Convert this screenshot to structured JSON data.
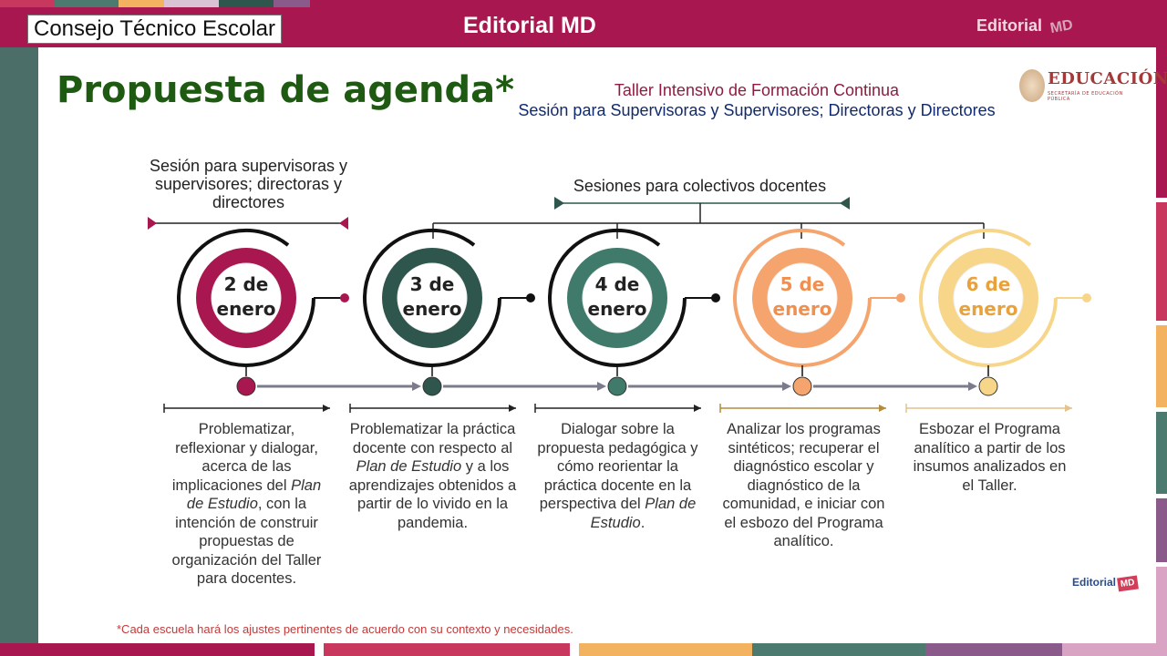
{
  "header": {
    "badge": "Consejo Técnico Escolar",
    "brand": "Editorial MD",
    "brand_right_word": "Editorial",
    "brand_right_mark": "MD"
  },
  "title": "Propuesta de agenda*",
  "subtitle": {
    "line1": "Taller Intensivo de Formación Continua",
    "line2": "Sesión para Supervisoras y Supervisores; Directoras y Directores"
  },
  "logo": {
    "text": "EDUCACIÓN",
    "subtext": "SECRETARÍA DE EDUCACIÓN PÚBLICA"
  },
  "labels": {
    "left": "Sesión para supervisoras y supervisores; directoras y directores",
    "right": "Sesiones para colectivos docentes"
  },
  "sessions": [
    {
      "date": "2 de enero",
      "color": "#a8174f",
      "desc_parts": [
        "Problematizar, reflexionar y dialogar, acerca de las implicaciones del ",
        "Plan de Estudio",
        ", con la intención de construir propuestas de organización del Taller para docentes."
      ]
    },
    {
      "date": "3 de enero",
      "color": "#2e564c",
      "desc_parts": [
        "Problematizar la práctica docente con respecto al ",
        "Plan de Estudio",
        " y a los aprendizajes obtenidos a partir de lo vivido en la pandemia."
      ]
    },
    {
      "date": "4 de enero",
      "color": "#3f7a6b",
      "desc_parts": [
        "Dialogar sobre la propuesta pedagógica y cómo reorientar la práctica docente en la perspectiva del ",
        "Plan de Estudio",
        "."
      ]
    },
    {
      "date": "5 de enero",
      "color": "#f4a46c",
      "desc_parts": [
        "Analizar los programas sintéticos; recuperar el diagnóstico escolar y diagnóstico de la comunidad, e iniciar con el esbozo del Programa analítico."
      ]
    },
    {
      "date": "6 de enero",
      "color": "#f7d68a",
      "desc_parts": [
        "Esbozar el Programa analítico a partir de los insumos analizados en el Taller."
      ]
    }
  ],
  "footnote": "*Cada escuela hará los ajustes pertinentes de acuerdo con su contexto y necesidades.",
  "footer_logo": {
    "word": "Editorial",
    "mark": "MD"
  }
}
